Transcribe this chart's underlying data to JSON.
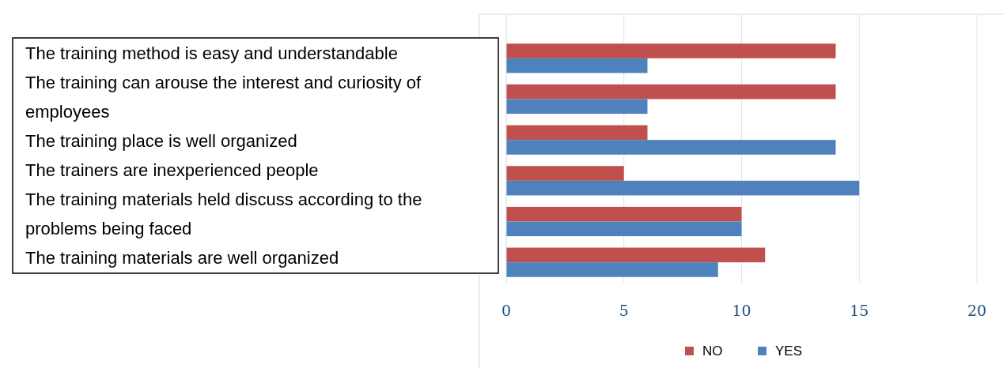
{
  "chart_data": {
    "type": "bar",
    "orientation": "horizontal",
    "categories": [
      "The training method is easy and understandable",
      "The training can arouse the interest and curiosity of employees",
      "The training place is well organized",
      "The trainers are inexperienced people",
      "The training materials held discuss according to the problems being faced",
      "The training materials are well organized"
    ],
    "series": [
      {
        "name": "NO",
        "color": "#c0504d",
        "values": [
          14,
          14,
          6,
          5,
          10,
          11
        ]
      },
      {
        "name": "YES",
        "color": "#4f81bd",
        "values": [
          6,
          6,
          14,
          15,
          10,
          9
        ]
      }
    ],
    "xlim": [
      0,
      20
    ],
    "xticks": [
      0,
      5,
      10,
      15,
      20
    ],
    "grid": "x",
    "legend": "bottom"
  }
}
